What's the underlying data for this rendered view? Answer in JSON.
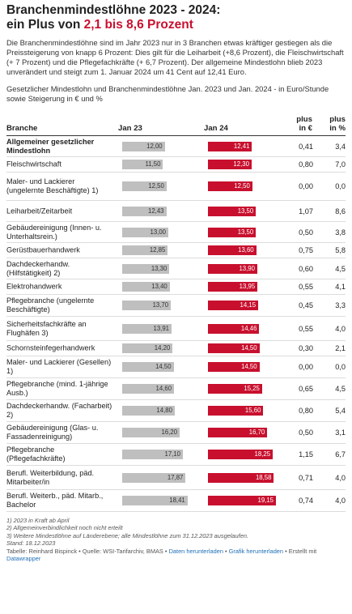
{
  "title": {
    "line1": "Branchenmindestlöhne 2023 - 2024:",
    "line2_prefix": "ein Plus von ",
    "line2_highlight": "2,1 bis 8,6 Prozent"
  },
  "intro": "Die Branchenmindestlöhne sind im Jahr 2023 nur in 3 Branchen etwas kräftiger gestiegen als die Preissteigerung von knapp 6 Prozent: Dies gilt für die Leiharbeit (+8,6 Prozent), die Fleischwirtschaft (+ 7 Prozent) und die Pflegefachkräfte (+ 6,7 Prozent). Der allgemeine Mindestlohn blieb 2023 unverändert und steigt zum 1. Januar 2024 um 41 Cent auf 12,41 Euro.",
  "subtitle": "Gesetzlicher Mindestlohn und Branchenmindestlöhne Jan. 2023 und Jan. 2024 - in Euro/Stunde sowie Steigerung in € und %",
  "columns": {
    "branche": "Branche",
    "jan23": "Jan 23",
    "jan24": "Jan 24",
    "plus_eur_1": "plus",
    "plus_eur_2": "in €",
    "plus_pct_1": "plus",
    "plus_pct_2": "in %"
  },
  "colors": {
    "jan23": "#bfbfbf",
    "jan24": "#c8102e"
  },
  "chart_data": {
    "type": "table",
    "bar_scale_max": 19.15,
    "rows": [
      {
        "name": "Allgemeiner gesetzlicher Mindestlohn",
        "jan23": "12,00",
        "jan24": "12,41",
        "v23": 12.0,
        "v24": 12.41,
        "plus_eur": "0,41",
        "plus_pct": "3,4",
        "bold": true
      },
      {
        "name": "Fleischwirtschaft",
        "jan23": "11,50",
        "jan24": "12,30",
        "v23": 11.5,
        "v24": 12.3,
        "plus_eur": "0,80",
        "plus_pct": "7,0"
      },
      {
        "name": "Maler- und Lackierer (ungelernte Beschäftigte) 1)",
        "jan23": "12,50",
        "jan24": "12,50",
        "v23": 12.5,
        "v24": 12.5,
        "plus_eur": "0,00",
        "plus_pct": "0,0"
      },
      {
        "name": "Leiharbeit/Zeitarbeit",
        "jan23": "12,43",
        "jan24": "13,50",
        "v23": 12.43,
        "v24": 13.5,
        "plus_eur": "1,07",
        "plus_pct": "8,6"
      },
      {
        "name": "Gebäudereinigung (Innen- u. Unterhaltsrein.)",
        "jan23": "13,00",
        "jan24": "13,50",
        "v23": 13.0,
        "v24": 13.5,
        "plus_eur": "0,50",
        "plus_pct": "3,8"
      },
      {
        "name": "Gerüstbauerhandwerk",
        "jan23": "12,85",
        "jan24": "13,60",
        "v23": 12.85,
        "v24": 13.6,
        "plus_eur": "0,75",
        "plus_pct": "5,8"
      },
      {
        "name": "Dachdeckerhandw. (Hilfstätigkeit) 2)",
        "jan23": "13,30",
        "jan24": "13,90",
        "v23": 13.3,
        "v24": 13.9,
        "plus_eur": "0,60",
        "plus_pct": "4,5"
      },
      {
        "name": "Elektrohandwerk",
        "jan23": "13,40",
        "jan24": "13,95",
        "v23": 13.4,
        "v24": 13.95,
        "plus_eur": "0,55",
        "plus_pct": "4,1"
      },
      {
        "name": "Pflegebranche (ungelernte Beschäftigte)",
        "jan23": "13,70",
        "jan24": "14,15",
        "v23": 13.7,
        "v24": 14.15,
        "plus_eur": "0,45",
        "plus_pct": "3,3"
      },
      {
        "name": "Sicherheitsfachkräfte an Flughäfen 3)",
        "jan23": "13,91",
        "jan24": "14,46",
        "v23": 13.91,
        "v24": 14.46,
        "plus_eur": "0,55",
        "plus_pct": "4,0"
      },
      {
        "name": "Schornsteinfegerhandwerk",
        "jan23": "14,20",
        "jan24": "14,50",
        "v23": 14.2,
        "v24": 14.5,
        "plus_eur": "0,30",
        "plus_pct": "2,1"
      },
      {
        "name": "Maler- und Lackierer (Gesellen) 1)",
        "jan23": "14,50",
        "jan24": "14,50",
        "v23": 14.5,
        "v24": 14.5,
        "plus_eur": "0,00",
        "plus_pct": "0,0"
      },
      {
        "name": "Pflegebranche (mind. 1-jährige Ausb.)",
        "jan23": "14,60",
        "jan24": "15,25",
        "v23": 14.6,
        "v24": 15.25,
        "plus_eur": "0,65",
        "plus_pct": "4,5"
      },
      {
        "name": "Dachdeckerhandw. (Facharbeit) 2)",
        "jan23": "14,80",
        "jan24": "15,60",
        "v23": 14.8,
        "v24": 15.6,
        "plus_eur": "0,80",
        "plus_pct": "5,4"
      },
      {
        "name": "Gebäudereinigung (Glas- u. Fassadenreinigung)",
        "jan23": "16,20",
        "jan24": "16,70",
        "v23": 16.2,
        "v24": 16.7,
        "plus_eur": "0,50",
        "plus_pct": "3,1"
      },
      {
        "name": "Pflegebranche (Pflegefachkräfte)",
        "jan23": "17,10",
        "jan24": "18,25",
        "v23": 17.1,
        "v24": 18.25,
        "plus_eur": "1,15",
        "plus_pct": "6,7"
      },
      {
        "name": "Berufl. Weiterbildung, päd. Mitarbeiter/in",
        "jan23": "17,87",
        "jan24": "18,58",
        "v23": 17.87,
        "v24": 18.58,
        "plus_eur": "0,71",
        "plus_pct": "4,0"
      },
      {
        "name": "Berufl. Weiterb., päd. Mitarb., Bachelor",
        "jan23": "18,41",
        "jan24": "19,15",
        "v23": 18.41,
        "v24": 19.15,
        "plus_eur": "0,74",
        "plus_pct": "4,0"
      }
    ]
  },
  "footnotes": {
    "f1": "1) 2023 in Kraft ab April",
    "f2": "2) Allgemeinverbindlichkeit noch nicht erteilt",
    "f3": "3) Weitere Mindestlöhne auf Länderebene; alle Mindestlöhne zum 31.12.2023 ausgelaufen.",
    "stand": "Stand: 18.12.2023",
    "credits_prefix": "Tabelle: Reinhard Bispinck • Quelle: WSI-Tarifarchiv, BMAS • ",
    "link_data": "Daten herunterladen",
    "sep": " • ",
    "link_graphic": "Grafik herunterladen",
    "credits_mid": " • Erstellt mit ",
    "link_dw": "Datawrapper"
  }
}
